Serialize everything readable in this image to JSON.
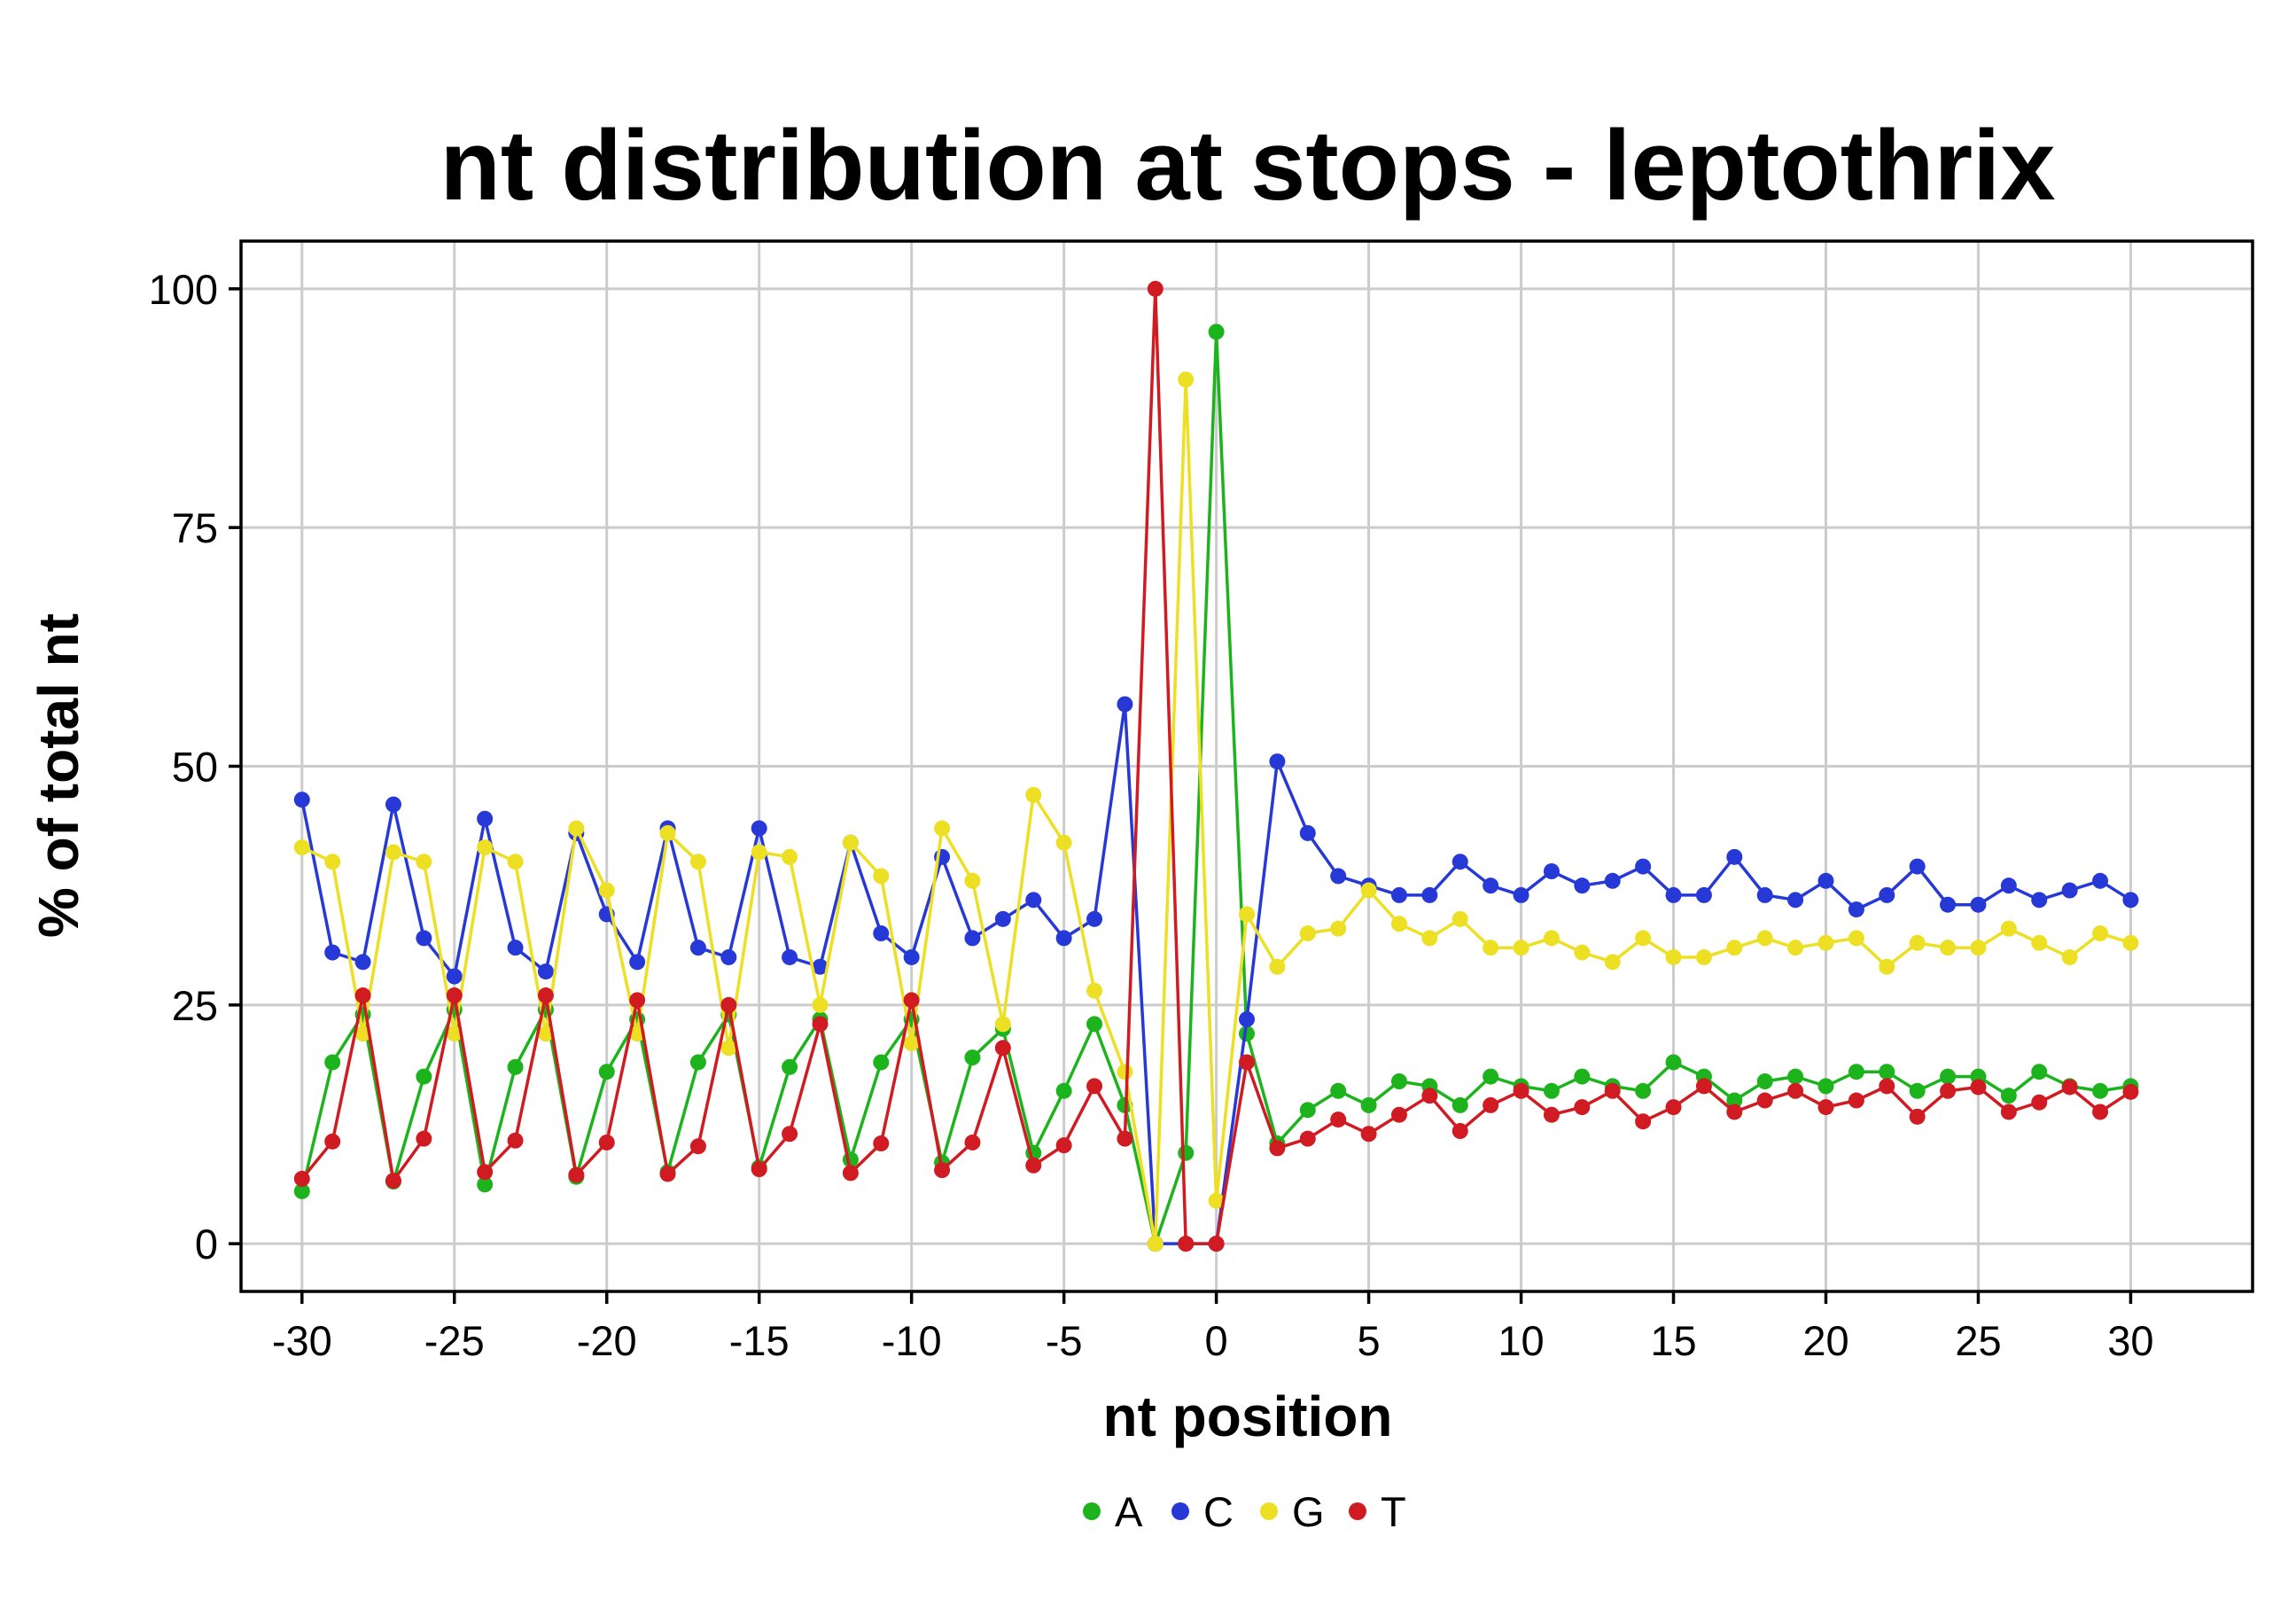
{
  "chart_data": {
    "type": "line",
    "title": "nt distribution at stops - leptothrix",
    "xlabel": "nt position",
    "ylabel": "% of total nt",
    "xlim": [
      -32,
      34
    ],
    "ylim": [
      -5,
      105
    ],
    "x_ticks": [
      -30,
      -25,
      -20,
      -15,
      -10,
      -5,
      0,
      5,
      10,
      15,
      20,
      25,
      30
    ],
    "x_tick_labels": [
      "-30",
      "-25",
      "-20",
      "-15",
      "-10",
      "-5",
      "0",
      "5",
      "10",
      "15",
      "20",
      "25",
      "30"
    ],
    "y_ticks": [
      0,
      25,
      50,
      75,
      100
    ],
    "y_tick_labels": [
      "0",
      "25",
      "50",
      "75",
      "100"
    ],
    "grid": true,
    "legend_position": "bottom",
    "x": [
      -30,
      -29,
      -28,
      -27,
      -26,
      -25,
      -24,
      -23,
      -22,
      -21,
      -20,
      -19,
      -18,
      -17,
      -16,
      -15,
      -14,
      -13,
      -12,
      -11,
      -10,
      -9,
      -8,
      -7,
      -6,
      -5,
      -4,
      -3,
      -2,
      -1,
      0,
      1,
      2,
      3,
      4,
      5,
      6,
      7,
      8,
      9,
      10,
      11,
      12,
      13,
      14,
      15,
      16,
      17,
      18,
      19,
      20,
      21,
      22,
      23,
      24,
      25,
      26,
      27,
      28,
      29,
      30
    ],
    "series": [
      {
        "name": "A",
        "color": "#1db31d",
        "values": [
          5.5,
          19,
          24,
          6.5,
          17.5,
          24.5,
          6.2,
          18.5,
          24.5,
          7,
          18,
          23.5,
          7.5,
          19,
          24,
          8,
          18.5,
          23.5,
          8.8,
          19,
          23.5,
          8.5,
          19.5,
          22.5,
          9.5,
          16,
          23,
          14.5,
          0,
          9.5,
          95.5,
          22,
          10.5,
          14,
          16,
          14.5,
          17,
          16.5,
          14.5,
          17.5,
          16.5,
          16,
          17.5,
          16.5,
          16,
          19,
          17.5,
          15,
          17,
          17.5,
          16.5,
          18,
          18,
          16,
          17.5,
          17.5,
          15.5,
          18,
          16.5,
          16,
          16.5
        ]
      },
      {
        "name": "C",
        "color": "#2639d6",
        "values": [
          46.5,
          30.5,
          29.5,
          46,
          32,
          28,
          44.5,
          31,
          28.5,
          43,
          34.5,
          29.5,
          43.5,
          31,
          30,
          43.5,
          30,
          29,
          42,
          32.5,
          30,
          40.5,
          32,
          34,
          36,
          32,
          34,
          56.5,
          0,
          0,
          0,
          23.5,
          50.5,
          43,
          38.5,
          37.5,
          36.5,
          36.5,
          40,
          37.5,
          36.5,
          39,
          37.5,
          38,
          39.5,
          36.5,
          36.5,
          40.5,
          36.5,
          36,
          38,
          35,
          36.5,
          39.5,
          35.5,
          35.5,
          37.5,
          36,
          37,
          38,
          36
        ]
      },
      {
        "name": "G",
        "color": "#ede024",
        "values": [
          41.5,
          40,
          22,
          41,
          40,
          22,
          41.5,
          40,
          22,
          43.5,
          37,
          22,
          43,
          40,
          20.5,
          41,
          40.5,
          25,
          42,
          38.5,
          21,
          43.5,
          38,
          23,
          47,
          42,
          26.5,
          18,
          0,
          90.5,
          4.5,
          34.5,
          29,
          32.5,
          33,
          37,
          33.5,
          32,
          34,
          31,
          31,
          32,
          30.5,
          29.5,
          32,
          30,
          30,
          31,
          32,
          31,
          31.5,
          32,
          29,
          31.5,
          31,
          31,
          33,
          31.5,
          30,
          32.5,
          31.5
        ]
      },
      {
        "name": "T",
        "color": "#d11b23",
        "values": [
          6.8,
          10.7,
          26,
          6.6,
          11,
          26,
          7.5,
          10.8,
          26,
          7.2,
          10.6,
          25.5,
          7.3,
          10.2,
          25,
          7.8,
          11.5,
          23,
          7.4,
          10.5,
          25.5,
          7.7,
          10.6,
          20.5,
          8.2,
          10.3,
          16.5,
          11,
          100,
          0,
          0,
          19,
          10,
          11,
          13,
          11.5,
          13.5,
          15.5,
          11.8,
          14.5,
          16,
          13.5,
          14.3,
          16,
          12.8,
          14.3,
          16.5,
          13.8,
          15,
          16,
          14.3,
          15,
          16.5,
          13.3,
          16,
          16.4,
          13.8,
          14.8,
          16.4,
          13.8,
          15.9
        ]
      }
    ]
  }
}
